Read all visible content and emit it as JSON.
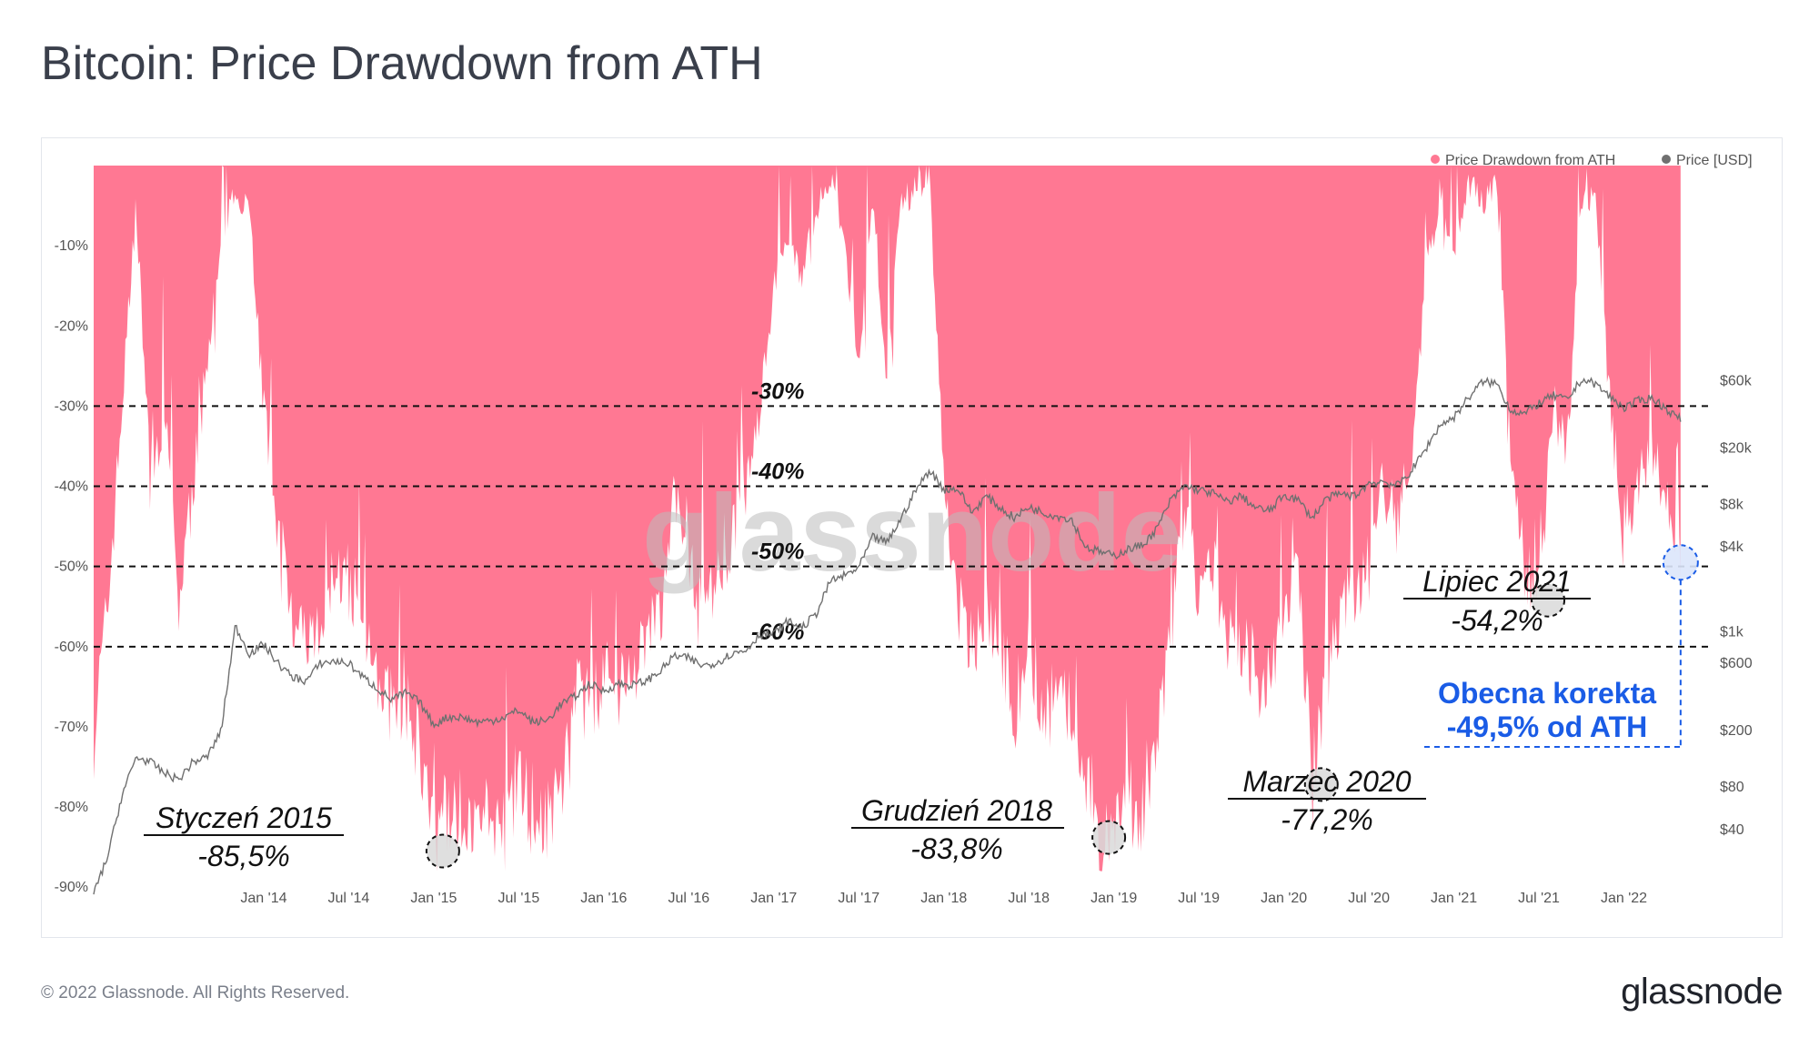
{
  "title": "Bitcoin: Price Drawdown from ATH",
  "footer": "© 2022 Glassnode. All Rights Reserved.",
  "brand": "glassnode",
  "watermark": "glassnode",
  "legend": [
    {
      "name": "Price Drawdown from ATH",
      "color": "#ff7893"
    },
    {
      "name": "Price [USD]",
      "color": "#707070"
    }
  ],
  "chart_data": {
    "type": "area",
    "x_tick_labels": [
      "Jan '14",
      "Jul '14",
      "Jan '15",
      "Jul '15",
      "Jan '16",
      "Jul '16",
      "Jan '17",
      "Jul '17",
      "Jan '18",
      "Jul '18",
      "Jan '19",
      "Jul '19",
      "Jan '20",
      "Jul '20",
      "Jan '21",
      "Jul '21",
      "Jan '22"
    ],
    "y_left_ticks": [
      "-10%",
      "-20%",
      "-30%",
      "-40%",
      "-50%",
      "-60%",
      "-70%",
      "-80%",
      "-90%"
    ],
    "y_right_ticks": [
      "$60k",
      "$20k",
      "$8k",
      "$4k",
      "$1k",
      "$600",
      "$200",
      "$80",
      "$40"
    ],
    "series": [
      {
        "name": "Price Drawdown from ATH",
        "unit": "%",
        "points": [
          [
            "2013-01",
            -71
          ],
          [
            "2013-02",
            -55
          ],
          [
            "2013-03",
            -30
          ],
          [
            "2013-04",
            -5
          ],
          [
            "2013-05",
            -40
          ],
          [
            "2013-06",
            -30
          ],
          [
            "2013-07",
            -55
          ],
          [
            "2013-08",
            -40
          ],
          [
            "2013-09",
            -25
          ],
          [
            "2013-10",
            -10
          ],
          [
            "2013-11",
            -3
          ],
          [
            "2013-12",
            -5
          ],
          [
            "2014-01",
            -30
          ],
          [
            "2014-02",
            -45
          ],
          [
            "2014-03",
            -55
          ],
          [
            "2014-04",
            -60
          ],
          [
            "2014-05",
            -58
          ],
          [
            "2014-06",
            -50
          ],
          [
            "2014-07",
            -53
          ],
          [
            "2014-08",
            -58
          ],
          [
            "2014-09",
            -62
          ],
          [
            "2014-10",
            -68
          ],
          [
            "2014-11",
            -68
          ],
          [
            "2014-12",
            -72
          ],
          [
            "2015-01",
            -85.5
          ],
          [
            "2015-02",
            -80
          ],
          [
            "2015-03",
            -81
          ],
          [
            "2015-04",
            -82
          ],
          [
            "2015-05",
            -82
          ],
          [
            "2015-06",
            -80
          ],
          [
            "2015-07",
            -77
          ],
          [
            "2015-08",
            -80
          ],
          [
            "2015-09",
            -81
          ],
          [
            "2015-10",
            -78
          ],
          [
            "2015-11",
            -65
          ],
          [
            "2015-12",
            -68
          ],
          [
            "2016-01",
            -64
          ],
          [
            "2016-02",
            -65
          ],
          [
            "2016-03",
            -64
          ],
          [
            "2016-04",
            -60
          ],
          [
            "2016-05",
            -56
          ],
          [
            "2016-06",
            -40
          ],
          [
            "2016-07",
            -50
          ],
          [
            "2016-08",
            -52
          ],
          [
            "2016-09",
            -52
          ],
          [
            "2016-10",
            -47
          ],
          [
            "2016-11",
            -40
          ],
          [
            "2016-12",
            -30
          ],
          [
            "2017-01",
            -15
          ],
          [
            "2017-02",
            -8
          ],
          [
            "2017-03",
            -15
          ],
          [
            "2017-04",
            -5
          ],
          [
            "2017-05",
            -2
          ],
          [
            "2017-06",
            -10
          ],
          [
            "2017-07",
            -25
          ],
          [
            "2017-08",
            -5
          ],
          [
            "2017-09",
            -25
          ],
          [
            "2017-10",
            -5
          ],
          [
            "2017-11",
            -3
          ],
          [
            "2017-12",
            -1
          ],
          [
            "2018-01",
            -40
          ],
          [
            "2018-02",
            -55
          ],
          [
            "2018-03",
            -60
          ],
          [
            "2018-04",
            -55
          ],
          [
            "2018-05",
            -60
          ],
          [
            "2018-06",
            -68
          ],
          [
            "2018-07",
            -60
          ],
          [
            "2018-08",
            -68
          ],
          [
            "2018-09",
            -67
          ],
          [
            "2018-10",
            -68
          ],
          [
            "2018-11",
            -75
          ],
          [
            "2018-12",
            -83.8
          ],
          [
            "2019-01",
            -82
          ],
          [
            "2019-02",
            -80
          ],
          [
            "2019-03",
            -80
          ],
          [
            "2019-04",
            -72
          ],
          [
            "2019-05",
            -60
          ],
          [
            "2019-06",
            -42
          ],
          [
            "2019-07",
            -55
          ],
          [
            "2019-08",
            -50
          ],
          [
            "2019-09",
            -58
          ],
          [
            "2019-10",
            -60
          ],
          [
            "2019-11",
            -62
          ],
          [
            "2019-12",
            -64
          ],
          [
            "2020-01",
            -55
          ],
          [
            "2020-02",
            -50
          ],
          [
            "2020-03",
            -77.2
          ],
          [
            "2020-04",
            -64
          ],
          [
            "2020-05",
            -55
          ],
          [
            "2020-06",
            -53
          ],
          [
            "2020-07",
            -50
          ],
          [
            "2020-08",
            -40
          ],
          [
            "2020-09",
            -45
          ],
          [
            "2020-10",
            -35
          ],
          [
            "2020-11",
            -15
          ],
          [
            "2020-12",
            -3
          ],
          [
            "2021-01",
            -10
          ],
          [
            "2021-02",
            -2
          ],
          [
            "2021-03",
            -5
          ],
          [
            "2021-04",
            -2
          ],
          [
            "2021-05",
            -35
          ],
          [
            "2021-06",
            -50
          ],
          [
            "2021-07",
            -54.2
          ],
          [
            "2021-08",
            -30
          ],
          [
            "2021-09",
            -35
          ],
          [
            "2021-10",
            -5
          ],
          [
            "2021-11",
            -3
          ],
          [
            "2021-12",
            -30
          ],
          [
            "2022-01",
            -45
          ],
          [
            "2022-02",
            -40
          ],
          [
            "2022-03",
            -35
          ],
          [
            "2022-04",
            -42
          ],
          [
            "2022-05",
            -49.5
          ]
        ]
      },
      {
        "name": "Price [USD]",
        "unit": "USD",
        "points": [
          [
            "2013-01",
            14
          ],
          [
            "2013-02",
            26
          ],
          [
            "2013-03",
            70
          ],
          [
            "2013-04",
            130
          ],
          [
            "2013-05",
            120
          ],
          [
            "2013-06",
            100
          ],
          [
            "2013-07",
            90
          ],
          [
            "2013-08",
            120
          ],
          [
            "2013-09",
            130
          ],
          [
            "2013-10",
            200
          ],
          [
            "2013-11",
            1100
          ],
          [
            "2013-12",
            700
          ],
          [
            "2014-01",
            820
          ],
          [
            "2014-02",
            600
          ],
          [
            "2014-03",
            480
          ],
          [
            "2014-04",
            450
          ],
          [
            "2014-05",
            600
          ],
          [
            "2014-06",
            620
          ],
          [
            "2014-07",
            600
          ],
          [
            "2014-08",
            480
          ],
          [
            "2014-09",
            400
          ],
          [
            "2014-10",
            330
          ],
          [
            "2014-11",
            370
          ],
          [
            "2014-12",
            320
          ],
          [
            "2015-01",
            220
          ],
          [
            "2015-02",
            250
          ],
          [
            "2015-03",
            250
          ],
          [
            "2015-04",
            230
          ],
          [
            "2015-05",
            235
          ],
          [
            "2015-06",
            250
          ],
          [
            "2015-07",
            280
          ],
          [
            "2015-08",
            230
          ],
          [
            "2015-09",
            235
          ],
          [
            "2015-10",
            310
          ],
          [
            "2015-11",
            350
          ],
          [
            "2015-12",
            430
          ],
          [
            "2016-01",
            380
          ],
          [
            "2016-02",
            430
          ],
          [
            "2016-03",
            420
          ],
          [
            "2016-04",
            450
          ],
          [
            "2016-05",
            530
          ],
          [
            "2016-06",
            680
          ],
          [
            "2016-07",
            650
          ],
          [
            "2016-08",
            575
          ],
          [
            "2016-09",
            610
          ],
          [
            "2016-10",
            700
          ],
          [
            "2016-11",
            740
          ],
          [
            "2016-12",
            960
          ],
          [
            "2017-01",
            970
          ],
          [
            "2017-02",
            1190
          ],
          [
            "2017-03",
            1070
          ],
          [
            "2017-04",
            1350
          ],
          [
            "2017-05",
            2300
          ],
          [
            "2017-06",
            2500
          ],
          [
            "2017-07",
            2850
          ],
          [
            "2017-08",
            4700
          ],
          [
            "2017-09",
            4300
          ],
          [
            "2017-10",
            6400
          ],
          [
            "2017-11",
            10000
          ],
          [
            "2017-12",
            14000
          ],
          [
            "2018-01",
            10200
          ],
          [
            "2018-02",
            10300
          ],
          [
            "2018-03",
            7000
          ],
          [
            "2018-04",
            9200
          ],
          [
            "2018-05",
            7500
          ],
          [
            "2018-06",
            6400
          ],
          [
            "2018-07",
            7700
          ],
          [
            "2018-08",
            7000
          ],
          [
            "2018-09",
            6600
          ],
          [
            "2018-10",
            6300
          ],
          [
            "2018-11",
            4000
          ],
          [
            "2018-12",
            3700
          ],
          [
            "2019-01",
            3450
          ],
          [
            "2019-02",
            3850
          ],
          [
            "2019-03",
            4100
          ],
          [
            "2019-04",
            5300
          ],
          [
            "2019-05",
            8500
          ],
          [
            "2019-06",
            10800
          ],
          [
            "2019-07",
            10100
          ],
          [
            "2019-08",
            9600
          ],
          [
            "2019-09",
            8300
          ],
          [
            "2019-10",
            9200
          ],
          [
            "2019-11",
            7550
          ],
          [
            "2019-12",
            7200
          ],
          [
            "2020-01",
            9350
          ],
          [
            "2020-02",
            8600
          ],
          [
            "2020-03",
            6400
          ],
          [
            "2020-04",
            8800
          ],
          [
            "2020-05",
            9450
          ],
          [
            "2020-06",
            9150
          ],
          [
            "2020-07",
            11300
          ],
          [
            "2020-08",
            11650
          ],
          [
            "2020-09",
            10800
          ],
          [
            "2020-10",
            13800
          ],
          [
            "2020-11",
            19700
          ],
          [
            "2020-12",
            29000
          ],
          [
            "2021-01",
            33100
          ],
          [
            "2021-02",
            45200
          ],
          [
            "2021-03",
            58800
          ],
          [
            "2021-04",
            57700
          ],
          [
            "2021-05",
            37300
          ],
          [
            "2021-06",
            35000
          ],
          [
            "2021-07",
            41500
          ],
          [
            "2021-08",
            47100
          ],
          [
            "2021-09",
            43800
          ],
          [
            "2021-10",
            61300
          ],
          [
            "2021-11",
            57000
          ],
          [
            "2021-12",
            46300
          ],
          [
            "2022-01",
            38500
          ],
          [
            "2022-02",
            43200
          ],
          [
            "2022-03",
            45500
          ],
          [
            "2022-04",
            37700
          ],
          [
            "2022-05",
            31800
          ]
        ]
      }
    ],
    "reference_lines": [
      "-30%",
      "-40%",
      "-50%",
      "-60%"
    ],
    "annotations": [
      {
        "label": "Styczeń 2015",
        "value": "-85,5%",
        "x": "2015-01",
        "y": -85.5
      },
      {
        "label": "Grudzień 2018",
        "value": "-83,8%",
        "x": "2018-12",
        "y": -83.8
      },
      {
        "label": "Marzec 2020",
        "value": "-77,2%",
        "x": "2020-03",
        "y": -77.2
      },
      {
        "label": "Lipiec 2021",
        "value": "-54,2%",
        "x": "2021-07",
        "y": -54.2
      },
      {
        "label": "Obecna korekta",
        "value": "-49,5% od ATH",
        "x": "2022-05",
        "y": -49.5,
        "highlight_color": "#1a5ce6"
      }
    ]
  }
}
